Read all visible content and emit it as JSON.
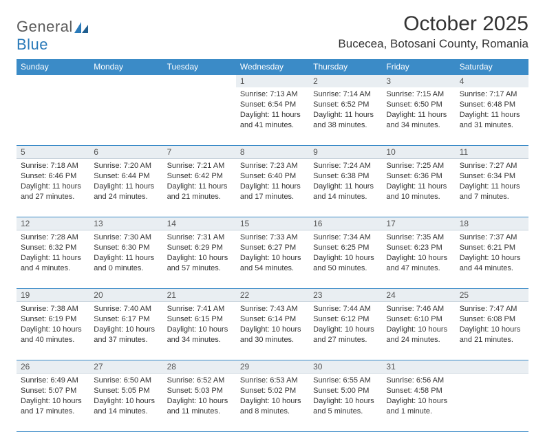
{
  "brand": {
    "word1": "General",
    "word2": "Blue"
  },
  "title": "October 2025",
  "location": "Bucecea, Botosani County, Romania",
  "colors": {
    "header_bg": "#3b8bc7",
    "header_text": "#ffffff",
    "daynum_bg": "#e9eef2",
    "rule": "#3b8bc7",
    "text": "#333333",
    "logo_gray": "#5a5a5a",
    "logo_blue": "#2a7ab9"
  },
  "day_headers": [
    "Sunday",
    "Monday",
    "Tuesday",
    "Wednesday",
    "Thursday",
    "Friday",
    "Saturday"
  ],
  "weeks": [
    [
      {
        "n": "",
        "sr": "",
        "ss": "",
        "dl": ""
      },
      {
        "n": "",
        "sr": "",
        "ss": "",
        "dl": ""
      },
      {
        "n": "",
        "sr": "",
        "ss": "",
        "dl": ""
      },
      {
        "n": "1",
        "sr": "Sunrise: 7:13 AM",
        "ss": "Sunset: 6:54 PM",
        "dl": "Daylight: 11 hours and 41 minutes."
      },
      {
        "n": "2",
        "sr": "Sunrise: 7:14 AM",
        "ss": "Sunset: 6:52 PM",
        "dl": "Daylight: 11 hours and 38 minutes."
      },
      {
        "n": "3",
        "sr": "Sunrise: 7:15 AM",
        "ss": "Sunset: 6:50 PM",
        "dl": "Daylight: 11 hours and 34 minutes."
      },
      {
        "n": "4",
        "sr": "Sunrise: 7:17 AM",
        "ss": "Sunset: 6:48 PM",
        "dl": "Daylight: 11 hours and 31 minutes."
      }
    ],
    [
      {
        "n": "5",
        "sr": "Sunrise: 7:18 AM",
        "ss": "Sunset: 6:46 PM",
        "dl": "Daylight: 11 hours and 27 minutes."
      },
      {
        "n": "6",
        "sr": "Sunrise: 7:20 AM",
        "ss": "Sunset: 6:44 PM",
        "dl": "Daylight: 11 hours and 24 minutes."
      },
      {
        "n": "7",
        "sr": "Sunrise: 7:21 AM",
        "ss": "Sunset: 6:42 PM",
        "dl": "Daylight: 11 hours and 21 minutes."
      },
      {
        "n": "8",
        "sr": "Sunrise: 7:23 AM",
        "ss": "Sunset: 6:40 PM",
        "dl": "Daylight: 11 hours and 17 minutes."
      },
      {
        "n": "9",
        "sr": "Sunrise: 7:24 AM",
        "ss": "Sunset: 6:38 PM",
        "dl": "Daylight: 11 hours and 14 minutes."
      },
      {
        "n": "10",
        "sr": "Sunrise: 7:25 AM",
        "ss": "Sunset: 6:36 PM",
        "dl": "Daylight: 11 hours and 10 minutes."
      },
      {
        "n": "11",
        "sr": "Sunrise: 7:27 AM",
        "ss": "Sunset: 6:34 PM",
        "dl": "Daylight: 11 hours and 7 minutes."
      }
    ],
    [
      {
        "n": "12",
        "sr": "Sunrise: 7:28 AM",
        "ss": "Sunset: 6:32 PM",
        "dl": "Daylight: 11 hours and 4 minutes."
      },
      {
        "n": "13",
        "sr": "Sunrise: 7:30 AM",
        "ss": "Sunset: 6:30 PM",
        "dl": "Daylight: 11 hours and 0 minutes."
      },
      {
        "n": "14",
        "sr": "Sunrise: 7:31 AM",
        "ss": "Sunset: 6:29 PM",
        "dl": "Daylight: 10 hours and 57 minutes."
      },
      {
        "n": "15",
        "sr": "Sunrise: 7:33 AM",
        "ss": "Sunset: 6:27 PM",
        "dl": "Daylight: 10 hours and 54 minutes."
      },
      {
        "n": "16",
        "sr": "Sunrise: 7:34 AM",
        "ss": "Sunset: 6:25 PM",
        "dl": "Daylight: 10 hours and 50 minutes."
      },
      {
        "n": "17",
        "sr": "Sunrise: 7:35 AM",
        "ss": "Sunset: 6:23 PM",
        "dl": "Daylight: 10 hours and 47 minutes."
      },
      {
        "n": "18",
        "sr": "Sunrise: 7:37 AM",
        "ss": "Sunset: 6:21 PM",
        "dl": "Daylight: 10 hours and 44 minutes."
      }
    ],
    [
      {
        "n": "19",
        "sr": "Sunrise: 7:38 AM",
        "ss": "Sunset: 6:19 PM",
        "dl": "Daylight: 10 hours and 40 minutes."
      },
      {
        "n": "20",
        "sr": "Sunrise: 7:40 AM",
        "ss": "Sunset: 6:17 PM",
        "dl": "Daylight: 10 hours and 37 minutes."
      },
      {
        "n": "21",
        "sr": "Sunrise: 7:41 AM",
        "ss": "Sunset: 6:15 PM",
        "dl": "Daylight: 10 hours and 34 minutes."
      },
      {
        "n": "22",
        "sr": "Sunrise: 7:43 AM",
        "ss": "Sunset: 6:14 PM",
        "dl": "Daylight: 10 hours and 30 minutes."
      },
      {
        "n": "23",
        "sr": "Sunrise: 7:44 AM",
        "ss": "Sunset: 6:12 PM",
        "dl": "Daylight: 10 hours and 27 minutes."
      },
      {
        "n": "24",
        "sr": "Sunrise: 7:46 AM",
        "ss": "Sunset: 6:10 PM",
        "dl": "Daylight: 10 hours and 24 minutes."
      },
      {
        "n": "25",
        "sr": "Sunrise: 7:47 AM",
        "ss": "Sunset: 6:08 PM",
        "dl": "Daylight: 10 hours and 21 minutes."
      }
    ],
    [
      {
        "n": "26",
        "sr": "Sunrise: 6:49 AM",
        "ss": "Sunset: 5:07 PM",
        "dl": "Daylight: 10 hours and 17 minutes."
      },
      {
        "n": "27",
        "sr": "Sunrise: 6:50 AM",
        "ss": "Sunset: 5:05 PM",
        "dl": "Daylight: 10 hours and 14 minutes."
      },
      {
        "n": "28",
        "sr": "Sunrise: 6:52 AM",
        "ss": "Sunset: 5:03 PM",
        "dl": "Daylight: 10 hours and 11 minutes."
      },
      {
        "n": "29",
        "sr": "Sunrise: 6:53 AM",
        "ss": "Sunset: 5:02 PM",
        "dl": "Daylight: 10 hours and 8 minutes."
      },
      {
        "n": "30",
        "sr": "Sunrise: 6:55 AM",
        "ss": "Sunset: 5:00 PM",
        "dl": "Daylight: 10 hours and 5 minutes."
      },
      {
        "n": "31",
        "sr": "Sunrise: 6:56 AM",
        "ss": "Sunset: 4:58 PM",
        "dl": "Daylight: 10 hours and 1 minute."
      },
      {
        "n": "",
        "sr": "",
        "ss": "",
        "dl": ""
      }
    ]
  ]
}
